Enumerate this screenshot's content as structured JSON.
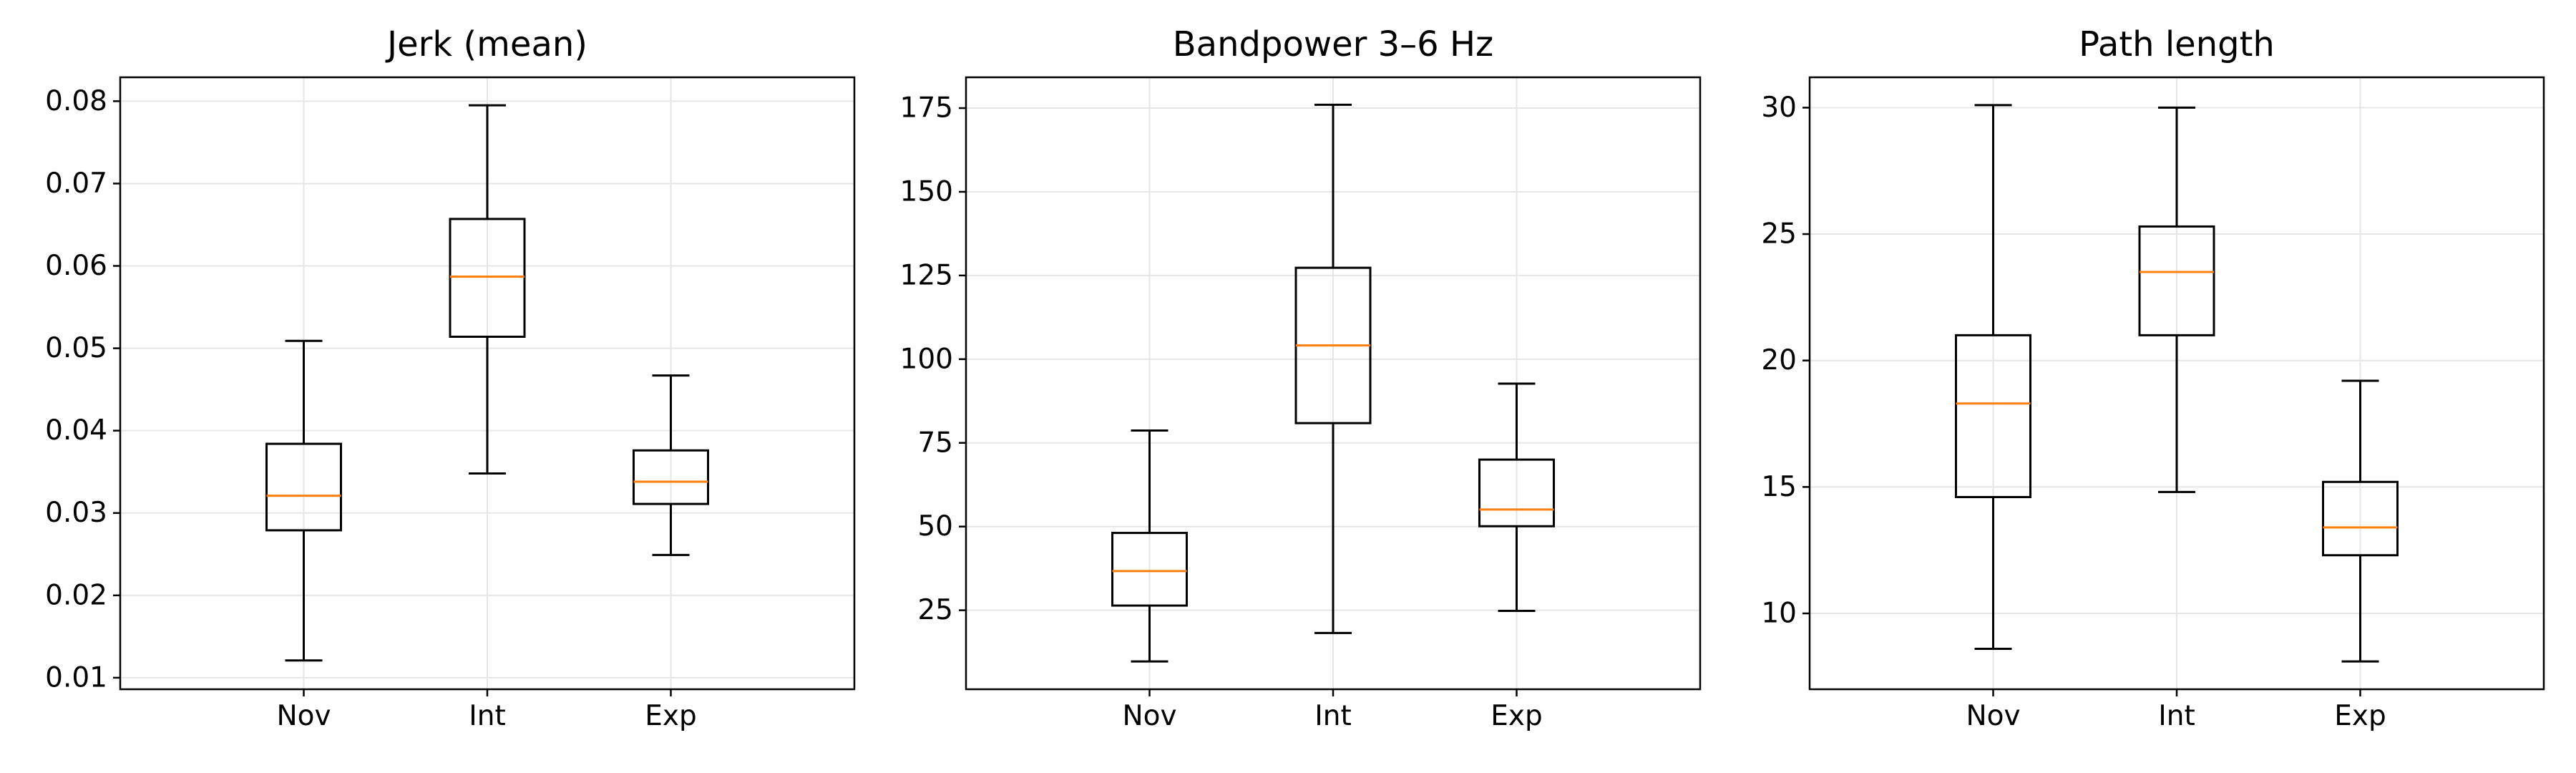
{
  "chart_data": [
    {
      "type": "box",
      "title": "Jerk (mean)",
      "categories": [
        "Nov",
        "Int",
        "Exp"
      ],
      "ylim": [
        0.0086,
        0.0829
      ],
      "yticks": [
        0.01,
        0.02,
        0.03,
        0.04,
        0.05,
        0.06,
        0.07,
        0.08
      ],
      "ytick_labels": [
        "0.01",
        "0.02",
        "0.03",
        "0.04",
        "0.05",
        "0.06",
        "0.07",
        "0.08"
      ],
      "grid": true,
      "boxes": [
        {
          "label": "Nov",
          "whisker_low": 0.0121,
          "q1": 0.0279,
          "median": 0.0321,
          "q3": 0.0384,
          "whisker_high": 0.0509
        },
        {
          "label": "Int",
          "whisker_low": 0.0348,
          "q1": 0.0514,
          "median": 0.0587,
          "q3": 0.0657,
          "whisker_high": 0.0795
        },
        {
          "label": "Exp",
          "whisker_low": 0.0249,
          "q1": 0.0311,
          "median": 0.0338,
          "q3": 0.0376,
          "whisker_high": 0.0467
        }
      ]
    },
    {
      "type": "box",
      "title": "Bandpower 3–6 Hz",
      "categories": [
        "Nov",
        "Int",
        "Exp"
      ],
      "ylim": [
        1.4,
        184.2
      ],
      "yticks": [
        25,
        50,
        75,
        100,
        125,
        150,
        175
      ],
      "ytick_labels": [
        "25",
        "50",
        "75",
        "100",
        "125",
        "150",
        "175"
      ],
      "grid": true,
      "boxes": [
        {
          "label": "Nov",
          "whisker_low": 9.7,
          "q1": 26.4,
          "median": 36.7,
          "q3": 48.1,
          "whisker_high": 78.7
        },
        {
          "label": "Int",
          "whisker_low": 18.2,
          "q1": 80.9,
          "median": 104.1,
          "q3": 127.3,
          "whisker_high": 176.0
        },
        {
          "label": "Exp",
          "whisker_low": 24.8,
          "q1": 50.1,
          "median": 55.1,
          "q3": 70.0,
          "whisker_high": 92.7
        }
      ]
    },
    {
      "type": "box",
      "title": "Path length",
      "categories": [
        "Nov",
        "Int",
        "Exp"
      ],
      "ylim": [
        7.0,
        31.2
      ],
      "yticks": [
        10,
        15,
        20,
        25,
        30
      ],
      "ytick_labels": [
        "10",
        "15",
        "20",
        "25",
        "30"
      ],
      "grid": true,
      "boxes": [
        {
          "label": "Nov",
          "whisker_low": 8.6,
          "q1": 14.6,
          "median": 18.3,
          "q3": 21.0,
          "whisker_high": 30.1
        },
        {
          "label": "Int",
          "whisker_low": 14.8,
          "q1": 21.0,
          "median": 23.5,
          "q3": 25.3,
          "whisker_high": 30.0
        },
        {
          "label": "Exp",
          "whisker_low": 8.1,
          "q1": 12.3,
          "median": 13.4,
          "q3": 15.2,
          "whisker_high": 19.2
        }
      ]
    }
  ]
}
